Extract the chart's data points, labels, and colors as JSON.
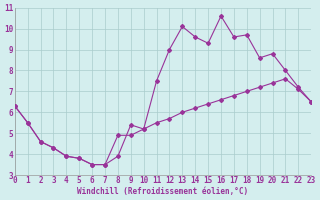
{
  "line1_x": [
    0,
    1,
    2,
    3,
    4,
    5,
    6,
    7,
    8,
    9,
    10,
    11,
    12,
    13,
    14,
    15,
    16,
    17,
    18,
    19,
    20,
    21,
    22,
    23
  ],
  "line1_y": [
    6.3,
    5.5,
    4.6,
    4.3,
    3.9,
    3.8,
    3.5,
    3.5,
    3.9,
    5.4,
    5.2,
    7.5,
    9.0,
    10.1,
    9.6,
    9.3,
    10.6,
    9.6,
    9.7,
    8.6,
    8.8,
    8.0,
    7.2,
    6.5
  ],
  "line2_x": [
    0,
    1,
    2,
    3,
    4,
    5,
    6,
    7,
    8,
    9,
    10,
    11,
    12,
    13,
    14,
    15,
    16,
    17,
    18,
    19,
    20,
    21,
    22,
    23
  ],
  "line2_y": [
    6.3,
    5.5,
    4.6,
    4.3,
    3.9,
    3.8,
    3.5,
    3.5,
    4.9,
    4.9,
    5.2,
    5.5,
    5.7,
    6.0,
    6.2,
    6.4,
    6.6,
    6.8,
    7.0,
    7.2,
    7.4,
    7.6,
    7.1,
    6.5
  ],
  "line_color": "#993399",
  "bg_color": "#d4eeee",
  "grid_color": "#aacccc",
  "xlabel": "Windchill (Refroidissement éolien,°C)",
  "xlim": [
    0,
    23
  ],
  "ylim": [
    3,
    11
  ],
  "yticks": [
    3,
    4,
    5,
    6,
    7,
    8,
    9,
    10,
    11
  ],
  "xticks": [
    0,
    1,
    2,
    3,
    4,
    5,
    6,
    7,
    8,
    9,
    10,
    11,
    12,
    13,
    14,
    15,
    16,
    17,
    18,
    19,
    20,
    21,
    22,
    23
  ],
  "marker": "D",
  "markersize": 2.0,
  "linewidth": 0.8,
  "tick_fontsize": 5.5,
  "xlabel_fontsize": 5.5
}
